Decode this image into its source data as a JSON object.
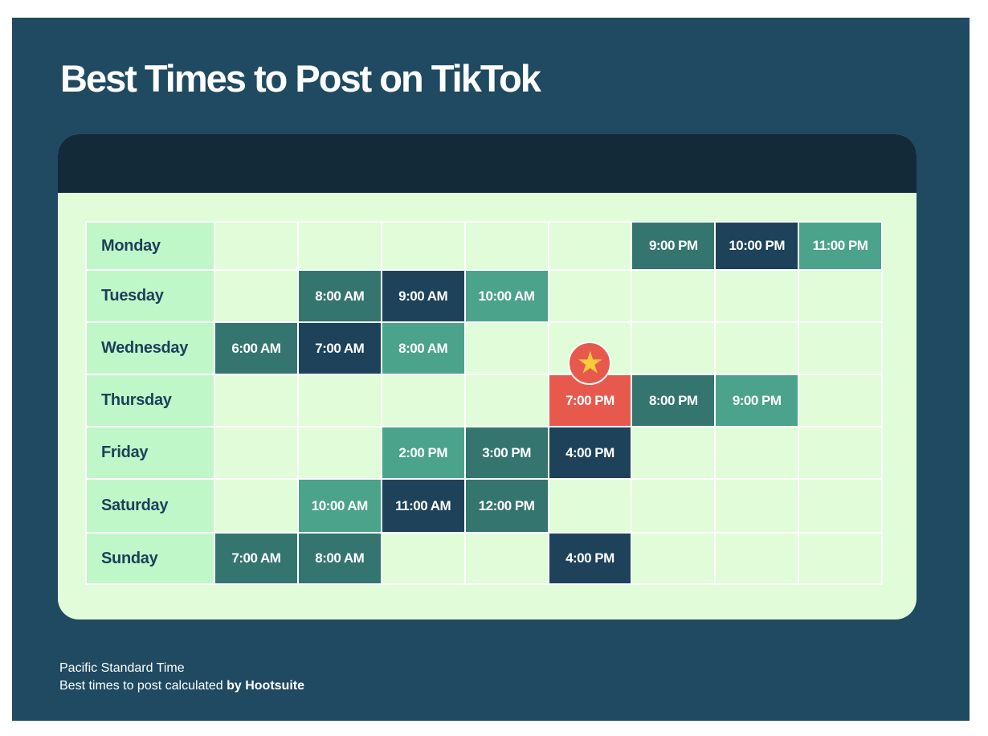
{
  "title": "Best Times to Post on TikTok",
  "footer": {
    "timezone": "Pacific Standard Time",
    "credit_prefix": "Best times to post calculated ",
    "credit_bold": "by Hootsuite"
  },
  "colors": {
    "navy": "#1d425a",
    "teal": "#347570",
    "green": "#4aa38a",
    "red": "#e8594d",
    "day": "#c0f7c8",
    "empty": "#e0fcd8"
  },
  "chart_data": {
    "type": "heatmap",
    "title": "Best Times to Post on TikTok",
    "rows": [
      {
        "day": "Monday",
        "cells": [
          null,
          null,
          null,
          null,
          null,
          {
            "time": "9:00 PM",
            "tone": "teal"
          },
          {
            "time": "10:00 PM",
            "tone": "navy"
          },
          {
            "time": "11:00 PM",
            "tone": "green"
          }
        ]
      },
      {
        "day": "Tuesday",
        "cells": [
          null,
          {
            "time": "8:00 AM",
            "tone": "teal"
          },
          {
            "time": "9:00 AM",
            "tone": "navy"
          },
          {
            "time": "10:00 AM",
            "tone": "green"
          },
          null,
          null,
          null,
          null
        ]
      },
      {
        "day": "Wednesday",
        "cells": [
          {
            "time": "6:00 AM",
            "tone": "teal"
          },
          {
            "time": "7:00 AM",
            "tone": "navy"
          },
          {
            "time": "8:00 AM",
            "tone": "green"
          },
          null,
          null,
          null,
          null,
          null
        ]
      },
      {
        "day": "Thursday",
        "cells": [
          null,
          null,
          null,
          null,
          {
            "time": "7:00 PM",
            "tone": "red",
            "best": true
          },
          {
            "time": "8:00 PM",
            "tone": "teal"
          },
          {
            "time": "9:00 PM",
            "tone": "green"
          },
          null
        ]
      },
      {
        "day": "Friday",
        "cells": [
          null,
          null,
          {
            "time": "2:00 PM",
            "tone": "green"
          },
          {
            "time": "3:00 PM",
            "tone": "teal"
          },
          {
            "time": "4:00 PM",
            "tone": "navy"
          },
          null,
          null,
          null
        ]
      },
      {
        "day": "Saturday",
        "cells": [
          null,
          {
            "time": "10:00 AM",
            "tone": "green"
          },
          {
            "time": "11:00 AM",
            "tone": "navy"
          },
          {
            "time": "12:00 PM",
            "tone": "teal"
          },
          null,
          null,
          null,
          null
        ]
      },
      {
        "day": "Sunday",
        "cells": [
          {
            "time": "7:00 AM",
            "tone": "teal"
          },
          {
            "time": "8:00 AM",
            "tone": "teal"
          },
          null,
          null,
          {
            "time": "4:00 PM",
            "tone": "navy"
          },
          null,
          null,
          null
        ]
      }
    ]
  }
}
